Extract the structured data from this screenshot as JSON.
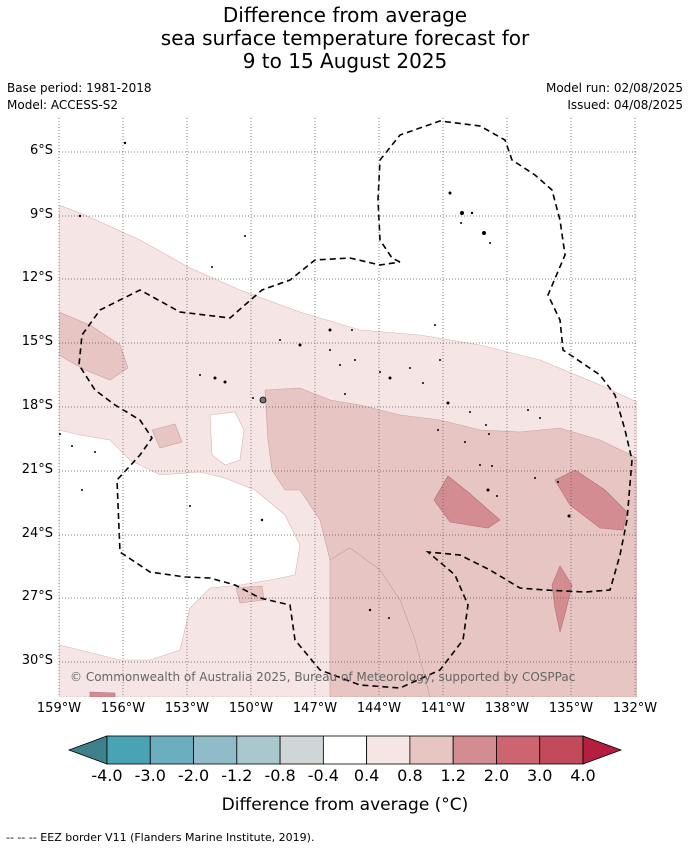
{
  "title": {
    "line1": "Difference from average",
    "line2": "sea surface temperature forecast for",
    "line3": "9 to 15 August 2025"
  },
  "meta": {
    "base_period": "Base period: 1981-2018",
    "model": "Model: ACCESS-S2",
    "model_run": "Model run: 02/08/2025",
    "issued": "Issued: 04/08/2025"
  },
  "map": {
    "lat_labels": [
      "6°S",
      "9°S",
      "12°S",
      "15°S",
      "18°S",
      "21°S",
      "24°S",
      "27°S",
      "30°S"
    ],
    "lon_labels": [
      "159°W",
      "156°W",
      "153°W",
      "150°W",
      "147°W",
      "144°W",
      "141°W",
      "138°W",
      "135°W",
      "132°W"
    ],
    "copyright": "© Commonwealth of Australia 2025, Bureau of Meteorology, supported by COSPPac"
  },
  "colorbar": {
    "labels": [
      "-4.0",
      "-3.0",
      "-2.0",
      "-1.2",
      "-0.8",
      "-0.4",
      "0.4",
      "0.8",
      "1.2",
      "2.0",
      "3.0",
      "4.0"
    ],
    "colors": [
      "#3f808d",
      "#4aa3b5",
      "#6daebe",
      "#8fbcc8",
      "#a9c8cd",
      "#d0d6d8",
      "#ffffff",
      "#f5e6e5",
      "#e7c5c2",
      "#d48c93",
      "#cd6570",
      "#c24a5a",
      "#b41f3f"
    ],
    "title": "Difference from average ($^\\circ$C)",
    "title_display": "Difference from average (°C)"
  },
  "footnote": "--  --  -- EEZ border V11 (Flanders Marine Institute, 2019)."
}
